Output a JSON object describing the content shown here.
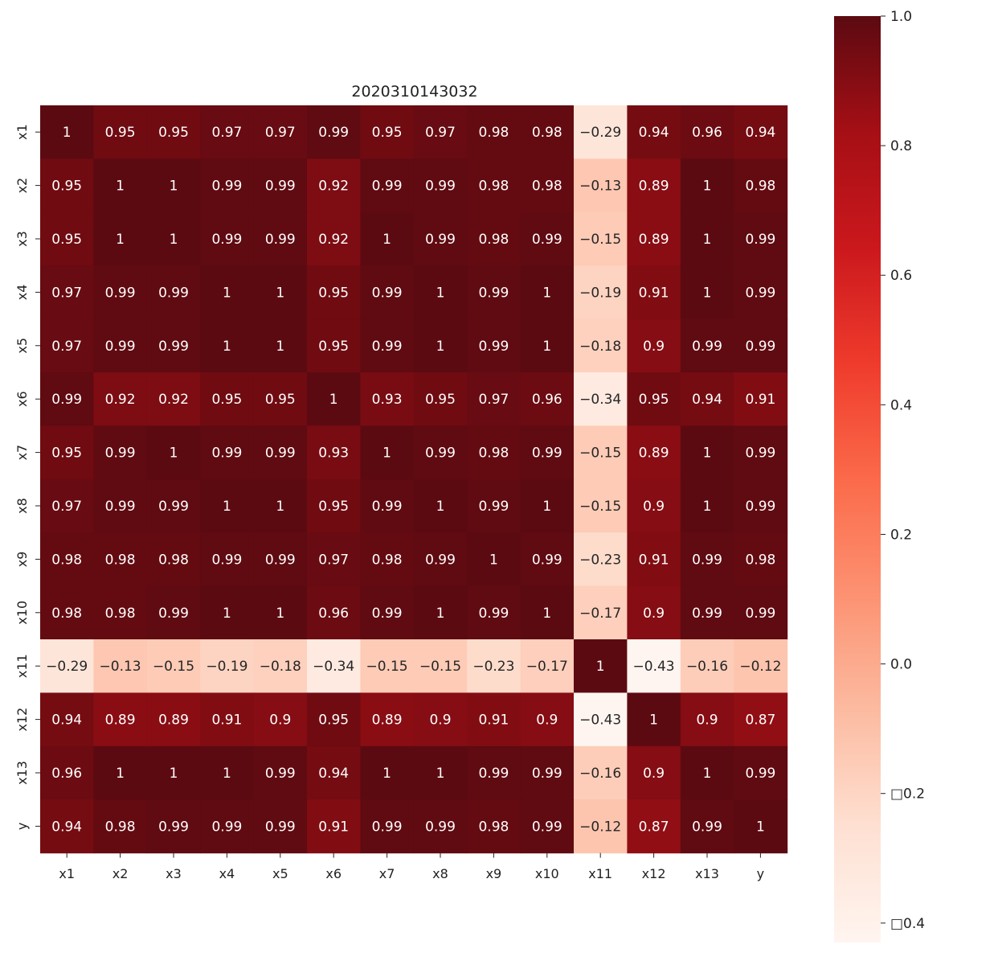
{
  "chart_data": {
    "type": "heatmap",
    "title": "2020310143032",
    "x_labels": [
      "x1",
      "x2",
      "x3",
      "x4",
      "x5",
      "x6",
      "x7",
      "x8",
      "x9",
      "x10",
      "x11",
      "x12",
      "x13",
      "y"
    ],
    "y_labels": [
      "x1",
      "x2",
      "x3",
      "x4",
      "x5",
      "x6",
      "x7",
      "x8",
      "x9",
      "x10",
      "x11",
      "x12",
      "x13",
      "y"
    ],
    "values": [
      [
        1,
        0.95,
        0.95,
        0.97,
        0.97,
        0.99,
        0.95,
        0.97,
        0.98,
        0.98,
        -0.29,
        0.94,
        0.96,
        0.94
      ],
      [
        0.95,
        1,
        1,
        0.99,
        0.99,
        0.92,
        0.99,
        0.99,
        0.98,
        0.98,
        -0.13,
        0.89,
        1,
        0.98
      ],
      [
        0.95,
        1,
        1,
        0.99,
        0.99,
        0.92,
        1,
        0.99,
        0.98,
        0.99,
        -0.15,
        0.89,
        1,
        0.99
      ],
      [
        0.97,
        0.99,
        0.99,
        1,
        1,
        0.95,
        0.99,
        1,
        0.99,
        1,
        -0.19,
        0.91,
        1,
        0.99
      ],
      [
        0.97,
        0.99,
        0.99,
        1,
        1,
        0.95,
        0.99,
        1,
        0.99,
        1,
        -0.18,
        0.9,
        0.99,
        0.99
      ],
      [
        0.99,
        0.92,
        0.92,
        0.95,
        0.95,
        1,
        0.93,
        0.95,
        0.97,
        0.96,
        -0.34,
        0.95,
        0.94,
        0.91
      ],
      [
        0.95,
        0.99,
        1,
        0.99,
        0.99,
        0.93,
        1,
        0.99,
        0.98,
        0.99,
        -0.15,
        0.89,
        1,
        0.99
      ],
      [
        0.97,
        0.99,
        0.99,
        1,
        1,
        0.95,
        0.99,
        1,
        0.99,
        1,
        -0.15,
        0.9,
        1,
        0.99
      ],
      [
        0.98,
        0.98,
        0.98,
        0.99,
        0.99,
        0.97,
        0.98,
        0.99,
        1,
        0.99,
        -0.23,
        0.91,
        0.99,
        0.98
      ],
      [
        0.98,
        0.98,
        0.99,
        1,
        1,
        0.96,
        0.99,
        1,
        0.99,
        1,
        -0.17,
        0.9,
        0.99,
        0.99
      ],
      [
        -0.29,
        -0.13,
        -0.15,
        -0.19,
        -0.18,
        -0.34,
        -0.15,
        -0.15,
        -0.23,
        -0.17,
        1,
        -0.43,
        -0.16,
        -0.12
      ],
      [
        0.94,
        0.89,
        0.89,
        0.91,
        0.9,
        0.95,
        0.89,
        0.9,
        0.91,
        0.9,
        -0.43,
        1,
        0.9,
        0.87
      ],
      [
        0.96,
        1,
        1,
        1,
        0.99,
        0.94,
        1,
        1,
        0.99,
        0.99,
        -0.16,
        0.9,
        1,
        0.99
      ],
      [
        0.94,
        0.98,
        0.99,
        0.99,
        0.99,
        0.91,
        0.99,
        0.99,
        0.98,
        0.99,
        -0.12,
        0.87,
        0.99,
        1
      ]
    ],
    "vmin": -0.43,
    "vmax": 1,
    "colormap": "Reds",
    "colorbar": {
      "ticks": [
        1.0,
        0.8,
        0.6,
        0.4,
        0.2,
        0.0,
        -0.2,
        -0.4
      ],
      "tick_labels": [
        "1.0",
        "0.8",
        "0.6",
        "0.4",
        "0.2",
        "0.0",
        "□0.2",
        "□0.4"
      ]
    },
    "annotations": true
  }
}
